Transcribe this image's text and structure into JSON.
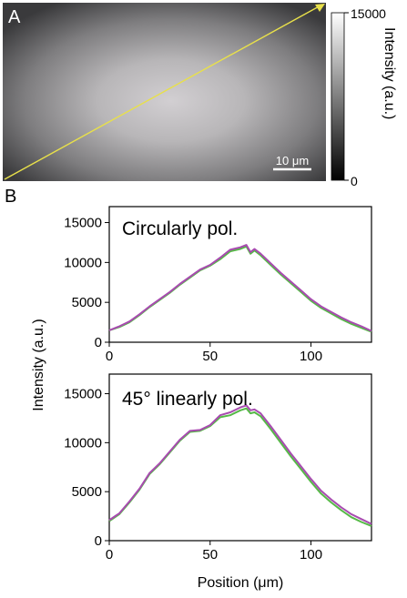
{
  "panel_a": {
    "label": "A",
    "scale_bar_label": "10 μm",
    "colorbar": {
      "max_label": "15000",
      "min_label": "0",
      "label": "Intensity (a.u.)"
    },
    "colors": {
      "line_profile": "#e8e04a"
    }
  },
  "panel_b": {
    "label": "B"
  },
  "colors": {
    "series_green": "#56b947",
    "series_purple": "#a84bb0"
  },
  "chart_data": [
    {
      "type": "line",
      "annotation": "Circularly pol.",
      "xlabel": "",
      "ylabel": "Intensity (a.u.)",
      "xlim": [
        0,
        130
      ],
      "ylim": [
        0,
        17000
      ],
      "xticks": [
        0,
        50,
        100
      ],
      "yticks": [
        0,
        5000,
        10000,
        15000
      ],
      "x": [
        0,
        5,
        10,
        15,
        20,
        25,
        30,
        35,
        40,
        45,
        50,
        55,
        60,
        65,
        68,
        70,
        72,
        75,
        80,
        85,
        90,
        95,
        100,
        105,
        110,
        115,
        120,
        125,
        130
      ],
      "series": [
        {
          "values": [
            1500,
            1900,
            2500,
            3400,
            4400,
            5300,
            6200,
            7200,
            8100,
            9000,
            9600,
            10400,
            11400,
            11700,
            12000,
            11100,
            11500,
            10900,
            9700,
            8500,
            7400,
            6300,
            5200,
            4300,
            3600,
            2900,
            2300,
            1800,
            1300
          ]
        },
        {
          "values": [
            1500,
            2000,
            2600,
            3500,
            4500,
            5400,
            6300,
            7300,
            8200,
            9100,
            9700,
            10600,
            11600,
            11900,
            12200,
            11300,
            11700,
            11100,
            9900,
            8700,
            7600,
            6500,
            5400,
            4500,
            3800,
            3100,
            2500,
            2000,
            1400
          ]
        }
      ]
    },
    {
      "type": "line",
      "annotation": "45° linearly pol.",
      "xlabel": "Position (μm)",
      "ylabel": "",
      "xlim": [
        0,
        130
      ],
      "ylim": [
        0,
        17000
      ],
      "xticks": [
        0,
        50,
        100
      ],
      "yticks": [
        0,
        5000,
        10000,
        15000
      ],
      "x": [
        0,
        5,
        10,
        15,
        20,
        25,
        30,
        35,
        40,
        45,
        50,
        55,
        60,
        65,
        68,
        70,
        72,
        75,
        80,
        85,
        90,
        95,
        100,
        105,
        110,
        115,
        120,
        125,
        130
      ],
      "series": [
        {
          "values": [
            2000,
            2700,
            3900,
            5200,
            6800,
            7800,
            9000,
            10200,
            11100,
            11200,
            11700,
            12600,
            12800,
            13300,
            13500,
            13000,
            13100,
            12700,
            11400,
            10000,
            8600,
            7300,
            6000,
            4800,
            3900,
            3100,
            2400,
            1900,
            1500
          ]
        },
        {
          "values": [
            2100,
            2800,
            4000,
            5300,
            6900,
            7900,
            9100,
            10300,
            11200,
            11300,
            11800,
            12800,
            13100,
            13600,
            13800,
            13300,
            13400,
            13000,
            11700,
            10300,
            8900,
            7600,
            6300,
            5100,
            4200,
            3400,
            2700,
            2200,
            1700
          ]
        }
      ]
    }
  ]
}
